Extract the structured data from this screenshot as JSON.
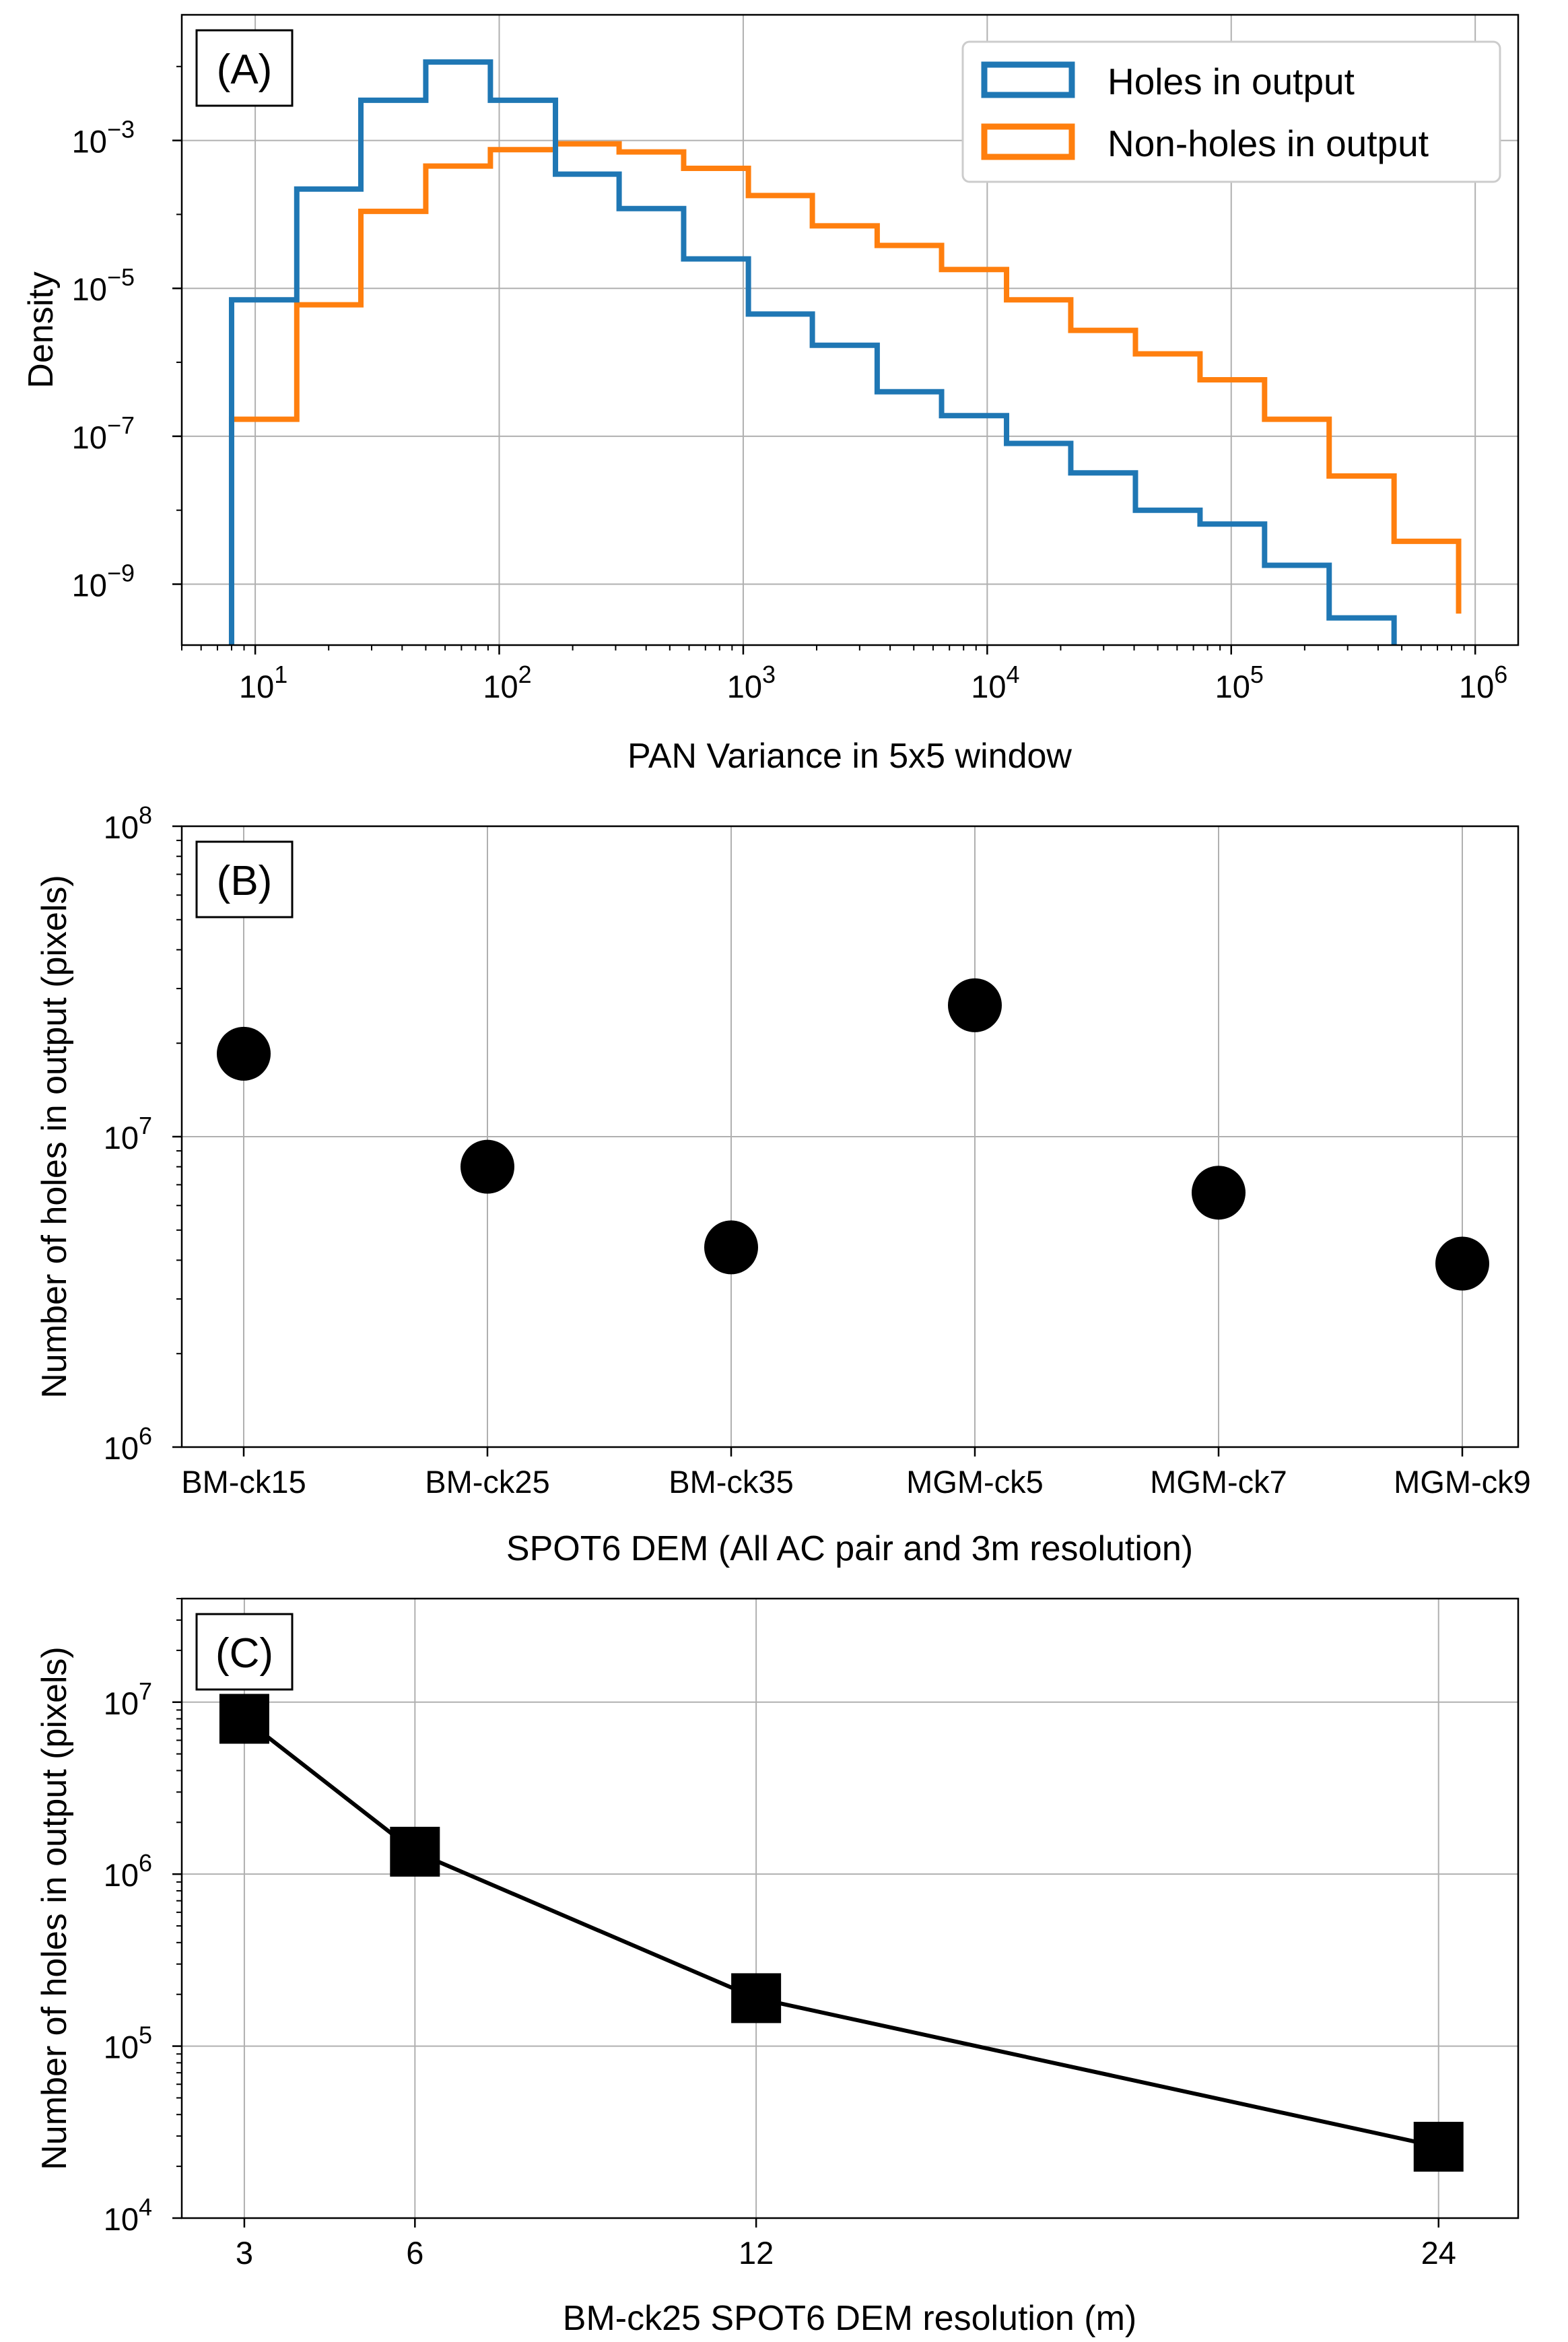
{
  "chart_data": [
    {
      "panel": "(A)",
      "type": "line",
      "subtype": "step-histogram",
      "xlabel": "PAN Variance in 5x5 window",
      "ylabel": "Density",
      "xscale": "log",
      "yscale": "log",
      "xlim": [
        5,
        1500000
      ],
      "ylim": [
        1.5e-10,
        0.05
      ],
      "grid": true,
      "legend_position": "top-right",
      "x_ticks": [
        {
          "base": "10",
          "exp": "1",
          "value": 10
        },
        {
          "base": "10",
          "exp": "2",
          "value": 100
        },
        {
          "base": "10",
          "exp": "3",
          "value": 1000
        },
        {
          "base": "10",
          "exp": "4",
          "value": 10000
        },
        {
          "base": "10",
          "exp": "5",
          "value": 100000
        },
        {
          "base": "10",
          "exp": "6",
          "value": 1000000
        }
      ],
      "y_ticks": [
        {
          "base": "10",
          "exp": "−3",
          "value": 0.001
        },
        {
          "base": "10",
          "exp": "−5",
          "value": 1e-05
        },
        {
          "base": "10",
          "exp": "−7",
          "value": 1e-07
        },
        {
          "base": "10",
          "exp": "−9",
          "value": 1e-09
        }
      ],
      "series": [
        {
          "name": "Holes in output",
          "color": "#1f77b4",
          "bin_edges": [
            8,
            14.8,
            27.1,
            50,
            92,
            170,
            310,
            570,
            1050,
            1920,
            3540,
            6500,
            12000,
            22000,
            40500,
            74500,
            137000,
            252000,
            465000
          ],
          "values": [
            7e-06,
            0.00022,
            0.0035,
            0.0115,
            0.0035,
            0.00035,
            0.00012,
            2.5e-05,
            4.5e-06,
            1.7e-06,
            4e-07,
            1.9e-07,
            8e-08,
            3.2e-08,
            1e-08,
            6.5e-09,
            1.8e-09,
            3.5e-10
          ]
        },
        {
          "name": "Non-holes in output",
          "color": "#ff7f0e",
          "bin_edges": [
            8,
            14.8,
            27.1,
            50,
            92,
            170,
            310,
            570,
            1050,
            1920,
            3540,
            6500,
            12000,
            22000,
            40500,
            74500,
            137000,
            252000,
            465000,
            855000
          ],
          "values": [
            1.7e-07,
            6e-06,
            0.00011,
            0.00045,
            0.00075,
            0.0009,
            0.0007,
            0.00042,
            0.00018,
            7e-05,
            3.8e-05,
            1.8e-05,
            7e-06,
            2.7e-06,
            1.3e-06,
            5.8e-07,
            1.7e-07,
            2.9e-08,
            3.8e-09,
            4e-10
          ]
        }
      ]
    },
    {
      "panel": "(B)",
      "type": "scatter",
      "xlabel": "SPOT6 DEM (All AC pair and 3m resolution)",
      "ylabel": "Number of holes in output (pixels)",
      "yscale": "log",
      "ylim": [
        1000000,
        100000000
      ],
      "grid": true,
      "y_ticks": [
        {
          "base": "10",
          "exp": "6",
          "value": 1000000
        },
        {
          "base": "10",
          "exp": "7",
          "value": 10000000
        },
        {
          "base": "10",
          "exp": "8",
          "value": 100000000
        }
      ],
      "categories": [
        "BM-ck15",
        "BM-ck25",
        "BM-ck35",
        "MGM-ck5",
        "MGM-ck7",
        "MGM-ck9"
      ],
      "values": [
        18500000,
        8000000,
        4400000,
        26500000,
        6600000,
        3900000
      ],
      "marker": "circle",
      "color": "#000000"
    },
    {
      "panel": "(C)",
      "type": "line",
      "xlabel": "BM-ck25 SPOT6 DEM resolution (m)",
      "ylabel": "Number of holes in output (pixels)",
      "yscale": "log",
      "xlim": [
        1.9,
        25.4
      ],
      "ylim": [
        10000,
        40000000
      ],
      "grid": true,
      "x_ticks": [
        3,
        6,
        12,
        24
      ],
      "y_ticks": [
        {
          "base": "10",
          "exp": "4",
          "value": 10000
        },
        {
          "base": "10",
          "exp": "5",
          "value": 100000
        },
        {
          "base": "10",
          "exp": "6",
          "value": 1000000
        },
        {
          "base": "10",
          "exp": "7",
          "value": 10000000
        }
      ],
      "x": [
        3,
        6,
        12,
        24
      ],
      "values": [
        8000000,
        1350000,
        190000,
        26000
      ],
      "marker": "square",
      "color": "#000000"
    }
  ]
}
